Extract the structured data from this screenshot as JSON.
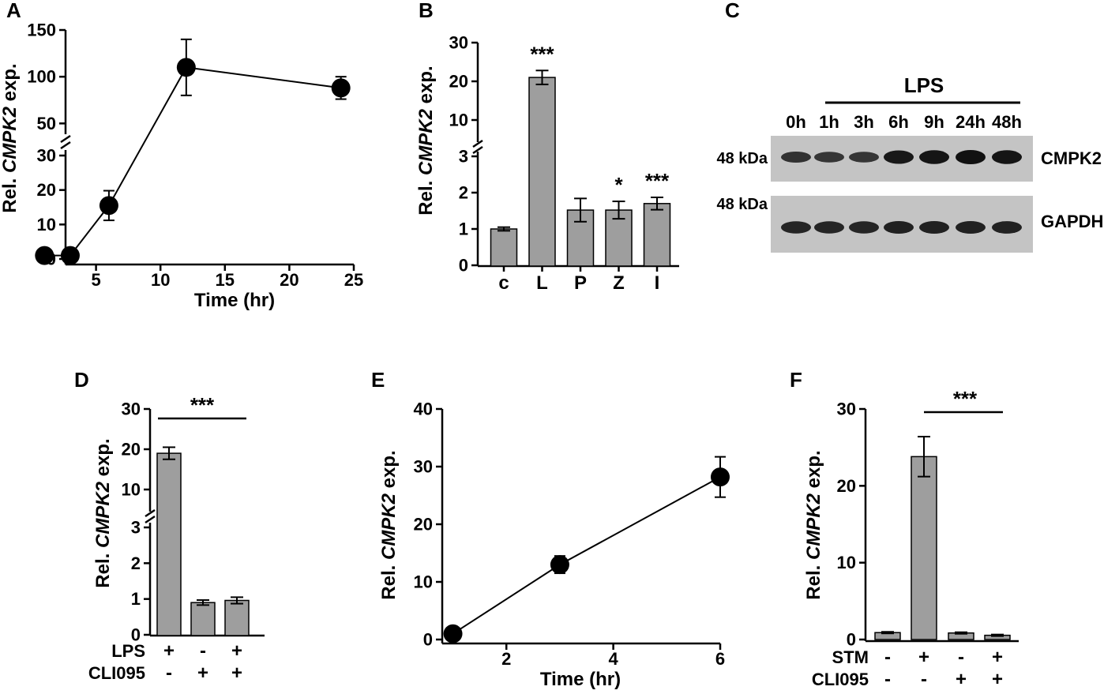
{
  "panels": {
    "A": {
      "letter": "A",
      "ylabel_pre": "Rel. ",
      "ylabel_gene": "CMPK2",
      "ylabel_post": " exp."
    },
    "B": {
      "letter": "B",
      "ylabel_pre": "Rel. ",
      "ylabel_gene": "CMPK2",
      "ylabel_post": " exp."
    },
    "C": {
      "letter": "C"
    },
    "D": {
      "letter": "D",
      "ylabel_pre": "Rel. ",
      "ylabel_gene": "CMPK2",
      "ylabel_post": " exp."
    },
    "E": {
      "letter": "E",
      "ylabel_pre": "Rel. ",
      "ylabel_gene": "CMPK2",
      "ylabel_post": " exp."
    },
    "F": {
      "letter": "F",
      "ylabel_pre": "Rel. ",
      "ylabel_gene": "CMPK2",
      "ylabel_post": " exp."
    }
  },
  "chart_data": [
    {
      "panel": "A",
      "type": "line",
      "xlabel": "Time (hr)",
      "ylabel": "Rel. CMPK2 exp.",
      "x": [
        1,
        3,
        6,
        12,
        24
      ],
      "y": [
        1,
        1,
        15.5,
        110,
        88
      ],
      "err": [
        0.5,
        0.5,
        4.3,
        30,
        12
      ],
      "xticks": [
        "5",
        "10",
        "15",
        "20",
        "25"
      ],
      "xlim": [
        0,
        25
      ],
      "yaxis": "broken",
      "yticks_lower": [
        "0",
        "10",
        "20",
        "30"
      ],
      "yticks_upper": [
        "50",
        "100",
        "150"
      ]
    },
    {
      "panel": "B",
      "type": "bar",
      "ylabel": "Rel. CMPK2 exp.",
      "categories": [
        "c",
        "L",
        "P",
        "Z",
        "I"
      ],
      "values": [
        1.0,
        21,
        1.52,
        1.52,
        1.7
      ],
      "err": [
        0.05,
        1.8,
        0.32,
        0.24,
        0.17
      ],
      "significance": [
        "",
        "***",
        "",
        "*",
        "***"
      ],
      "yaxis": "broken",
      "yticks_lower": [
        "0",
        "1",
        "2",
        "3"
      ],
      "yticks_upper": [
        "10",
        "20",
        "30"
      ]
    },
    {
      "panel": "C",
      "type": "western_blot",
      "treatment": "LPS",
      "lanes": [
        "0h",
        "1h",
        "3h",
        "6h",
        "9h",
        "24h",
        "48h"
      ],
      "blots": [
        {
          "protein": "CMPK2",
          "size": "48 kDa",
          "intensities": [
            0.6,
            0.55,
            0.55,
            0.9,
            0.95,
            1.0,
            0.95
          ]
        },
        {
          "protein": "GAPDH",
          "size": "48 kDa",
          "intensities": [
            0.75,
            0.75,
            0.75,
            0.8,
            0.8,
            0.8,
            0.78
          ]
        }
      ]
    },
    {
      "panel": "D",
      "type": "bar",
      "ylabel": "Rel. CMPK2 exp.",
      "values": [
        19,
        0.9,
        0.96
      ],
      "err": [
        1.5,
        0.07,
        0.09
      ],
      "conditions": [
        {
          "name": "LPS",
          "signs": [
            "+",
            "-",
            "+"
          ]
        },
        {
          "name": "CLI095",
          "signs": [
            "-",
            "+",
            "+"
          ]
        }
      ],
      "significance": "***",
      "yaxis": "broken",
      "yticks_lower": [
        "0",
        "1",
        "2",
        "3"
      ],
      "yticks_upper": [
        "10",
        "20",
        "30"
      ]
    },
    {
      "panel": "E",
      "type": "line",
      "xlabel": "Time (hr)",
      "ylabel": "Rel. CMPK2 exp.",
      "x": [
        1,
        3,
        6
      ],
      "y": [
        1,
        13,
        28.2
      ],
      "err": [
        0.3,
        1.5,
        3.5
      ],
      "xlim": [
        0.8,
        6
      ],
      "ylim": [
        0,
        40
      ],
      "xticks": [
        "2",
        "4",
        "6"
      ],
      "yticks": [
        "0",
        "10",
        "20",
        "30",
        "40"
      ]
    },
    {
      "panel": "F",
      "type": "bar",
      "ylabel": "Rel. CMPK2 exp.",
      "values": [
        0.9,
        23.8,
        0.85,
        0.55
      ],
      "err": [
        0.1,
        2.6,
        0.1,
        0.1
      ],
      "ylim": [
        0,
        30
      ],
      "yticks": [
        "0",
        "10",
        "20",
        "30"
      ],
      "conditions": [
        {
          "name": "STM",
          "signs": [
            "-",
            "+",
            "-",
            "+"
          ]
        },
        {
          "name": "CLI095",
          "signs": [
            "-",
            "-",
            "+",
            "+"
          ]
        }
      ],
      "significance": "***"
    }
  ]
}
